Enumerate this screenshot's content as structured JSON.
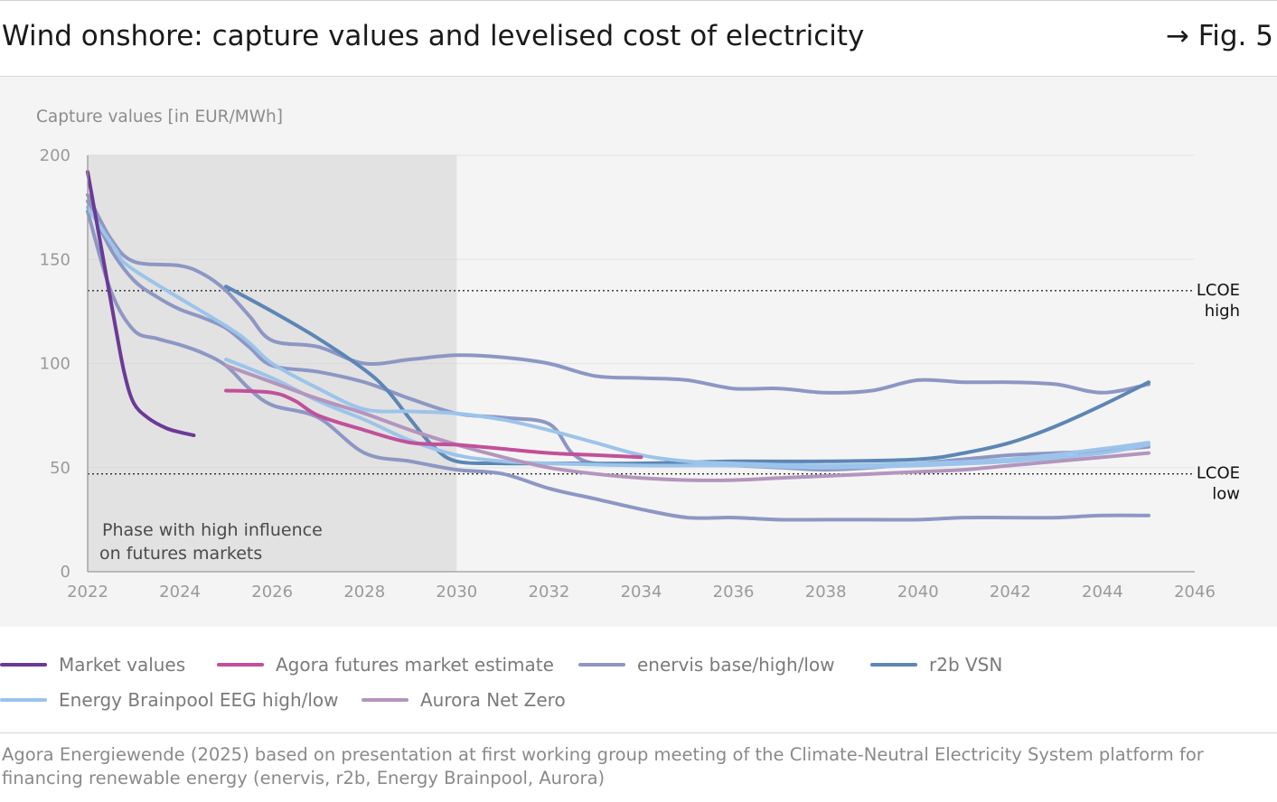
{
  "header": {
    "title": "Wind onshore: capture values and levelised cost of electricity",
    "figure_ref": "→ Fig. 5"
  },
  "colors": {
    "market_values": "#6b3a96",
    "agora": "#c2509a",
    "enervis": "#8d97c4",
    "r2b": "#5c86b5",
    "brainpool": "#9cc4ea",
    "aurora": "#b395bd",
    "shaded_phase": "#e2e2e2"
  },
  "chart_data": {
    "type": "line",
    "ylabel": "Capture values [in EUR/MWh]",
    "xlim": [
      2022,
      2046
    ],
    "ylim": [
      0,
      200
    ],
    "x_ticks": [
      "2022",
      "2024",
      "2026",
      "2028",
      "2030",
      "2032",
      "2034",
      "2036",
      "2038",
      "2040",
      "2042",
      "2044",
      "2046"
    ],
    "y_ticks": [
      "0",
      "50",
      "100",
      "150",
      "200"
    ],
    "grid": "horizontal",
    "legend": "bottom",
    "shaded_region": {
      "x_range": [
        2022,
        2030
      ],
      "label_line1": "Phase with high influence",
      "label_line2": "on futures markets"
    },
    "reference_lines": [
      {
        "id": "high",
        "y": 135,
        "label_line1": "LCOE",
        "label_line2": "high"
      },
      {
        "id": "low",
        "y": 47,
        "label_line1": "LCOE",
        "label_line2": "low"
      }
    ],
    "series": [
      {
        "name": "enervis base/high/low",
        "color_key": "enervis",
        "points": [
          [
            2022,
            178
          ],
          [
            2022.5,
            155
          ],
          [
            2023,
            140
          ],
          [
            2023.5,
            132
          ],
          [
            2024,
            126
          ],
          [
            2024.5,
            122
          ],
          [
            2025,
            117
          ],
          [
            2025.5,
            108
          ],
          [
            2026,
            99
          ],
          [
            2027,
            96
          ],
          [
            2028,
            91
          ],
          [
            2029,
            83
          ],
          [
            2030,
            76
          ],
          [
            2031,
            74
          ],
          [
            2032,
            71
          ],
          [
            2032.5,
            57
          ],
          [
            2033,
            52
          ],
          [
            2034,
            52
          ],
          [
            2035,
            52
          ],
          [
            2036,
            51
          ],
          [
            2037,
            50
          ],
          [
            2038,
            49
          ],
          [
            2039,
            50
          ],
          [
            2040,
            52
          ],
          [
            2041,
            54
          ],
          [
            2042,
            56
          ],
          [
            2043,
            57
          ],
          [
            2044,
            58
          ],
          [
            2045,
            60
          ]
        ]
      },
      {
        "name": "enervis base/high/low",
        "color_key": "enervis",
        "points": [
          [
            2022,
            181
          ],
          [
            2022.5,
            160
          ],
          [
            2023,
            149
          ],
          [
            2024,
            147
          ],
          [
            2024.5,
            143
          ],
          [
            2025,
            135
          ],
          [
            2025.5,
            123
          ],
          [
            2026,
            111
          ],
          [
            2027,
            108
          ],
          [
            2028,
            100
          ],
          [
            2029,
            102
          ],
          [
            2030,
            104
          ],
          [
            2031,
            103
          ],
          [
            2032,
            100
          ],
          [
            2033,
            94
          ],
          [
            2034,
            93
          ],
          [
            2035,
            92
          ],
          [
            2036,
            88
          ],
          [
            2037,
            88
          ],
          [
            2038,
            86
          ],
          [
            2039,
            87
          ],
          [
            2040,
            92
          ],
          [
            2041,
            91
          ],
          [
            2042,
            91
          ],
          [
            2043,
            90
          ],
          [
            2044,
            86
          ],
          [
            2045,
            90
          ]
        ]
      },
      {
        "name": "enervis base/high/low",
        "color_key": "enervis",
        "points": [
          [
            2022,
            173
          ],
          [
            2022.5,
            135
          ],
          [
            2023,
            116
          ],
          [
            2023.5,
            112
          ],
          [
            2024,
            109
          ],
          [
            2024.5,
            105
          ],
          [
            2025,
            99
          ],
          [
            2025.5,
            88
          ],
          [
            2026,
            80
          ],
          [
            2027,
            74
          ],
          [
            2028,
            57
          ],
          [
            2029,
            53
          ],
          [
            2030,
            49
          ],
          [
            2031,
            47
          ],
          [
            2032,
            40
          ],
          [
            2033,
            35
          ],
          [
            2034,
            30
          ],
          [
            2035,
            26
          ],
          [
            2036,
            26
          ],
          [
            2037,
            25
          ],
          [
            2038,
            25
          ],
          [
            2039,
            25
          ],
          [
            2040,
            25
          ],
          [
            2041,
            26
          ],
          [
            2042,
            26
          ],
          [
            2043,
            26
          ],
          [
            2044,
            27
          ],
          [
            2045,
            27
          ]
        ]
      },
      {
        "name": "r2b VSN",
        "color_key": "r2b",
        "points": [
          [
            2025,
            137
          ],
          [
            2026,
            125
          ],
          [
            2027,
            112
          ],
          [
            2028,
            97
          ],
          [
            2028.5,
            87
          ],
          [
            2029,
            73
          ],
          [
            2029.5,
            60
          ],
          [
            2030,
            53
          ],
          [
            2031,
            52
          ],
          [
            2032,
            52
          ],
          [
            2034,
            52
          ],
          [
            2036,
            53
          ],
          [
            2038,
            53
          ],
          [
            2040,
            54
          ],
          [
            2041,
            57
          ],
          [
            2042,
            62
          ],
          [
            2043,
            70
          ],
          [
            2044,
            80
          ],
          [
            2045,
            91
          ]
        ]
      },
      {
        "name": "Energy Brainpool EEG high/low",
        "color_key": "brainpool",
        "points": [
          [
            2022,
            175
          ],
          [
            2022.6,
            155
          ],
          [
            2023,
            145
          ],
          [
            2025,
            118
          ],
          [
            2025.5,
            110
          ],
          [
            2026,
            100
          ],
          [
            2027,
            88
          ],
          [
            2028,
            78
          ],
          [
            2029,
            77
          ],
          [
            2030,
            76
          ],
          [
            2031,
            73
          ],
          [
            2032,
            68
          ],
          [
            2033,
            62
          ],
          [
            2034,
            56
          ],
          [
            2035,
            53
          ],
          [
            2036,
            52
          ],
          [
            2038,
            51
          ],
          [
            2040,
            52
          ],
          [
            2042,
            54
          ],
          [
            2044,
            59
          ],
          [
            2045,
            62
          ]
        ]
      },
      {
        "name": "Energy Brainpool EEG high/low",
        "color_key": "brainpool",
        "points": [
          [
            2025,
            102
          ],
          [
            2026,
            93
          ],
          [
            2027,
            82
          ],
          [
            2028,
            73
          ],
          [
            2029,
            63
          ],
          [
            2030,
            56
          ],
          [
            2031,
            53
          ],
          [
            2032,
            52
          ],
          [
            2034,
            51
          ],
          [
            2036,
            51
          ],
          [
            2038,
            50
          ],
          [
            2040,
            51
          ],
          [
            2042,
            53
          ],
          [
            2044,
            57
          ],
          [
            2045,
            61
          ]
        ]
      },
      {
        "name": "Aurora Net Zero",
        "color_key": "aurora",
        "points": [
          [
            2025,
            99
          ],
          [
            2026,
            91
          ],
          [
            2027,
            83
          ],
          [
            2028,
            76
          ],
          [
            2029,
            68
          ],
          [
            2030,
            61
          ],
          [
            2031,
            55
          ],
          [
            2032,
            50
          ],
          [
            2033,
            47
          ],
          [
            2034,
            45
          ],
          [
            2035,
            44
          ],
          [
            2036,
            44
          ],
          [
            2037,
            45
          ],
          [
            2038,
            46
          ],
          [
            2039,
            47
          ],
          [
            2040,
            48
          ],
          [
            2041,
            49
          ],
          [
            2042,
            51
          ],
          [
            2043,
            53
          ],
          [
            2044,
            55
          ],
          [
            2045,
            57
          ]
        ]
      },
      {
        "name": "Agora futures market estimate",
        "color_key": "agora",
        "points": [
          [
            2025,
            87
          ],
          [
            2026,
            86
          ],
          [
            2026.5,
            82
          ],
          [
            2027,
            75
          ],
          [
            2028,
            68
          ],
          [
            2029,
            62
          ],
          [
            2030,
            61
          ],
          [
            2031,
            59
          ],
          [
            2032,
            57
          ],
          [
            2033,
            56
          ],
          [
            2034,
            55
          ]
        ]
      },
      {
        "name": "Market values",
        "color_key": "market_values",
        "points": [
          [
            2022,
            192
          ],
          [
            2022.3,
            155
          ],
          [
            2022.6,
            118
          ],
          [
            2022.8,
            95
          ],
          [
            2023,
            81
          ],
          [
            2023.3,
            74
          ],
          [
            2023.7,
            69
          ],
          [
            2024,
            67
          ],
          [
            2024.3,
            65.5
          ]
        ]
      }
    ]
  },
  "legend": [
    {
      "label": "Market values",
      "color_key": "market_values"
    },
    {
      "label": "Agora futures market estimate",
      "color_key": "agora"
    },
    {
      "label": "enervis base/high/low",
      "color_key": "enervis"
    },
    {
      "label": "r2b VSN",
      "color_key": "r2b"
    },
    {
      "label": "Energy Brainpool EEG high/low",
      "color_key": "brainpool"
    },
    {
      "label": "Aurora Net Zero",
      "color_key": "aurora"
    }
  ],
  "source": "Agora Energiewende (2025) based on presentation at first working group meeting of the Climate-Neutral Electricity System platform for financing renewable energy (enervis, r2b, Energy Brainpool, Aurora)"
}
